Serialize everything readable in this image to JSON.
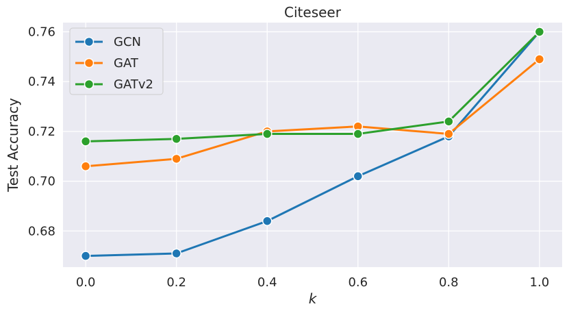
{
  "chart_data": {
    "type": "line",
    "title": "Citeseer",
    "xlabel": "k",
    "ylabel": "Test Accuracy",
    "x": [
      0.0,
      0.2,
      0.4,
      0.6,
      0.8,
      1.0
    ],
    "x_tick_labels": [
      "0.0",
      "0.2",
      "0.4",
      "0.6",
      "0.8",
      "1.0"
    ],
    "y_ticks": [
      0.68,
      0.7,
      0.72,
      0.74,
      0.76
    ],
    "y_tick_labels": [
      "0.68",
      "0.70",
      "0.72",
      "0.74",
      "0.76"
    ],
    "xlim": [
      -0.05,
      1.05
    ],
    "ylim": [
      0.6655,
      0.7637
    ],
    "grid": true,
    "legend_position": "top-left",
    "series": [
      {
        "name": "GCN",
        "color": "#1f77b4",
        "values": [
          0.67,
          0.671,
          0.684,
          0.702,
          0.718,
          0.76
        ]
      },
      {
        "name": "GAT",
        "color": "#ff7f0e",
        "values": [
          0.706,
          0.709,
          0.72,
          0.722,
          0.719,
          0.749
        ]
      },
      {
        "name": "GATv2",
        "color": "#2ca02c",
        "values": [
          0.716,
          0.717,
          0.719,
          0.719,
          0.724,
          0.76
        ]
      }
    ]
  }
}
